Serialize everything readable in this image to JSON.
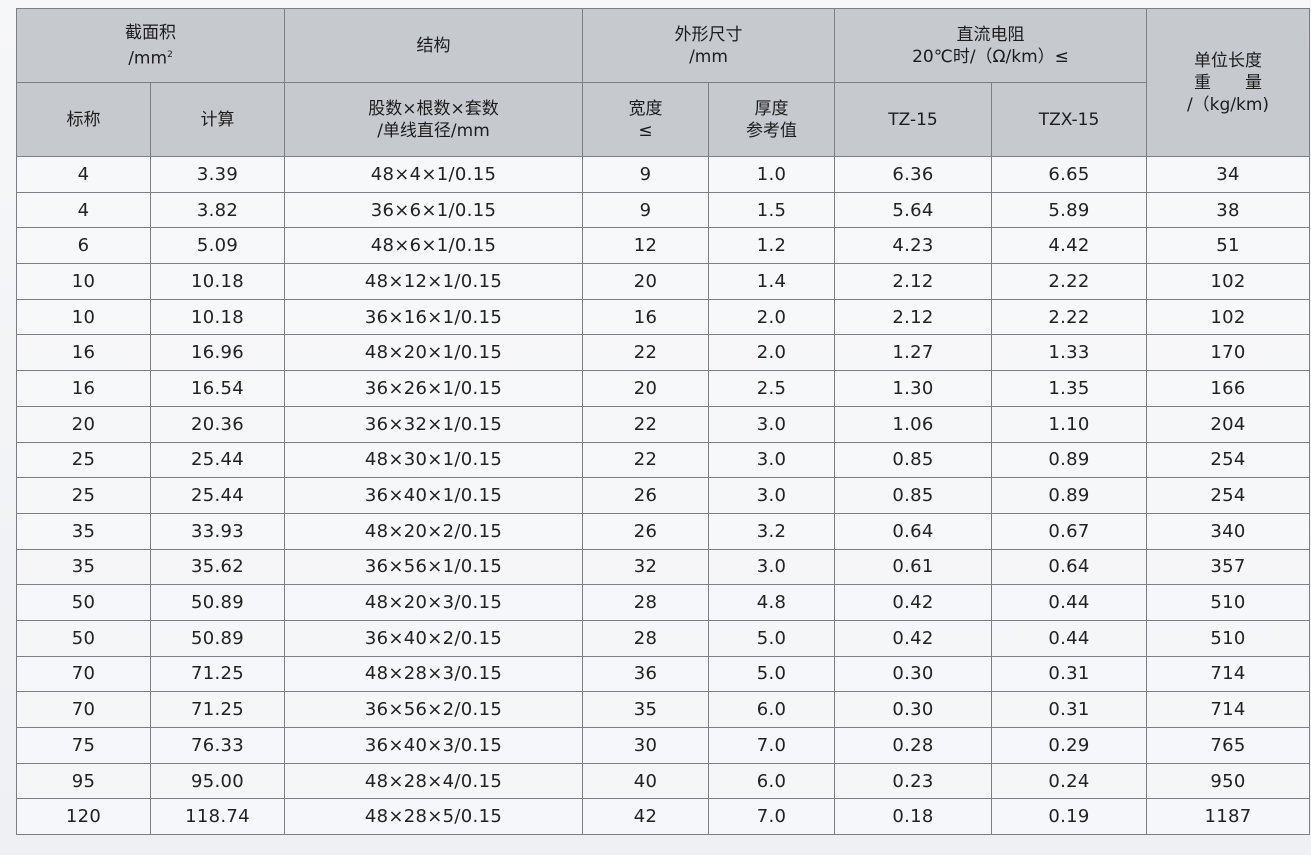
{
  "header": {
    "area_group": "截面积",
    "area_unit": "/mm",
    "area_unit_sup": "2",
    "nominal": "标称",
    "calculated": "计算",
    "structure_group": "结构",
    "structure_desc_line1": "股数×根数×套数",
    "structure_desc_line2": "/单线直径/mm",
    "dims_group": "外形尺寸",
    "dims_unit": "/mm",
    "width_line1": "宽度",
    "width_line2": "≤",
    "thickness_line1": "厚度",
    "thickness_line2": "参考值",
    "resistance_line1": "直流电阻",
    "resistance_line2": "20℃时/（Ω/km）≤",
    "tz15": "TZ-15",
    "tzx15": "TZX-15",
    "weight_line1": "单位长度",
    "weight_line2": "重　　量",
    "weight_line3": "/（kg/km)"
  },
  "rows": [
    {
      "nominal": "4",
      "calc": "3.39",
      "structure": "48×4×1/0.15",
      "width": "9",
      "thickness": "1.0",
      "tz15": "6.36",
      "tzx15": "6.65",
      "weight": "34"
    },
    {
      "nominal": "4",
      "calc": "3.82",
      "structure": "36×6×1/0.15",
      "width": "9",
      "thickness": "1.5",
      "tz15": "5.64",
      "tzx15": "5.89",
      "weight": "38"
    },
    {
      "nominal": "6",
      "calc": "5.09",
      "structure": "48×6×1/0.15",
      "width": "12",
      "thickness": "1.2",
      "tz15": "4.23",
      "tzx15": "4.42",
      "weight": "51"
    },
    {
      "nominal": "10",
      "calc": "10.18",
      "structure": "48×12×1/0.15",
      "width": "20",
      "thickness": "1.4",
      "tz15": "2.12",
      "tzx15": "2.22",
      "weight": "102"
    },
    {
      "nominal": "10",
      "calc": "10.18",
      "structure": "36×16×1/0.15",
      "width": "16",
      "thickness": "2.0",
      "tz15": "2.12",
      "tzx15": "2.22",
      "weight": "102"
    },
    {
      "nominal": "16",
      "calc": "16.96",
      "structure": "48×20×1/0.15",
      "width": "22",
      "thickness": "2.0",
      "tz15": "1.27",
      "tzx15": "1.33",
      "weight": "170"
    },
    {
      "nominal": "16",
      "calc": "16.54",
      "structure": "36×26×1/0.15",
      "width": "20",
      "thickness": "2.5",
      "tz15": "1.30",
      "tzx15": "1.35",
      "weight": "166"
    },
    {
      "nominal": "20",
      "calc": "20.36",
      "structure": "36×32×1/0.15",
      "width": "22",
      "thickness": "3.0",
      "tz15": "1.06",
      "tzx15": "1.10",
      "weight": "204"
    },
    {
      "nominal": "25",
      "calc": "25.44",
      "structure": "48×30×1/0.15",
      "width": "22",
      "thickness": "3.0",
      "tz15": "0.85",
      "tzx15": "0.89",
      "weight": "254"
    },
    {
      "nominal": "25",
      "calc": "25.44",
      "structure": "36×40×1/0.15",
      "width": "26",
      "thickness": "3.0",
      "tz15": "0.85",
      "tzx15": "0.89",
      "weight": "254"
    },
    {
      "nominal": "35",
      "calc": "33.93",
      "structure": "48×20×2/0.15",
      "width": "26",
      "thickness": "3.2",
      "tz15": "0.64",
      "tzx15": "0.67",
      "weight": "340"
    },
    {
      "nominal": "35",
      "calc": "35.62",
      "structure": "36×56×1/0.15",
      "width": "32",
      "thickness": "3.0",
      "tz15": "0.61",
      "tzx15": "0.64",
      "weight": "357"
    },
    {
      "nominal": "50",
      "calc": "50.89",
      "structure": "48×20×3/0.15",
      "width": "28",
      "thickness": "4.8",
      "tz15": "0.42",
      "tzx15": "0.44",
      "weight": "510"
    },
    {
      "nominal": "50",
      "calc": "50.89",
      "structure": "36×40×2/0.15",
      "width": "28",
      "thickness": "5.0",
      "tz15": "0.42",
      "tzx15": "0.44",
      "weight": "510"
    },
    {
      "nominal": "70",
      "calc": "71.25",
      "structure": "48×28×3/0.15",
      "width": "36",
      "thickness": "5.0",
      "tz15": "0.30",
      "tzx15": "0.31",
      "weight": "714"
    },
    {
      "nominal": "70",
      "calc": "71.25",
      "structure": "36×56×2/0.15",
      "width": "35",
      "thickness": "6.0",
      "tz15": "0.30",
      "tzx15": "0.31",
      "weight": "714"
    },
    {
      "nominal": "75",
      "calc": "76.33",
      "structure": "36×40×3/0.15",
      "width": "30",
      "thickness": "7.0",
      "tz15": "0.28",
      "tzx15": "0.29",
      "weight": "765"
    },
    {
      "nominal": "95",
      "calc": "95.00",
      "structure": "48×28×4/0.15",
      "width": "40",
      "thickness": "6.0",
      "tz15": "0.23",
      "tzx15": "0.24",
      "weight": "950"
    },
    {
      "nominal": "120",
      "calc": "118.74",
      "structure": "48×28×5/0.15",
      "width": "42",
      "thickness": "7.0",
      "tz15": "0.18",
      "tzx15": "0.19",
      "weight": "1187"
    }
  ]
}
